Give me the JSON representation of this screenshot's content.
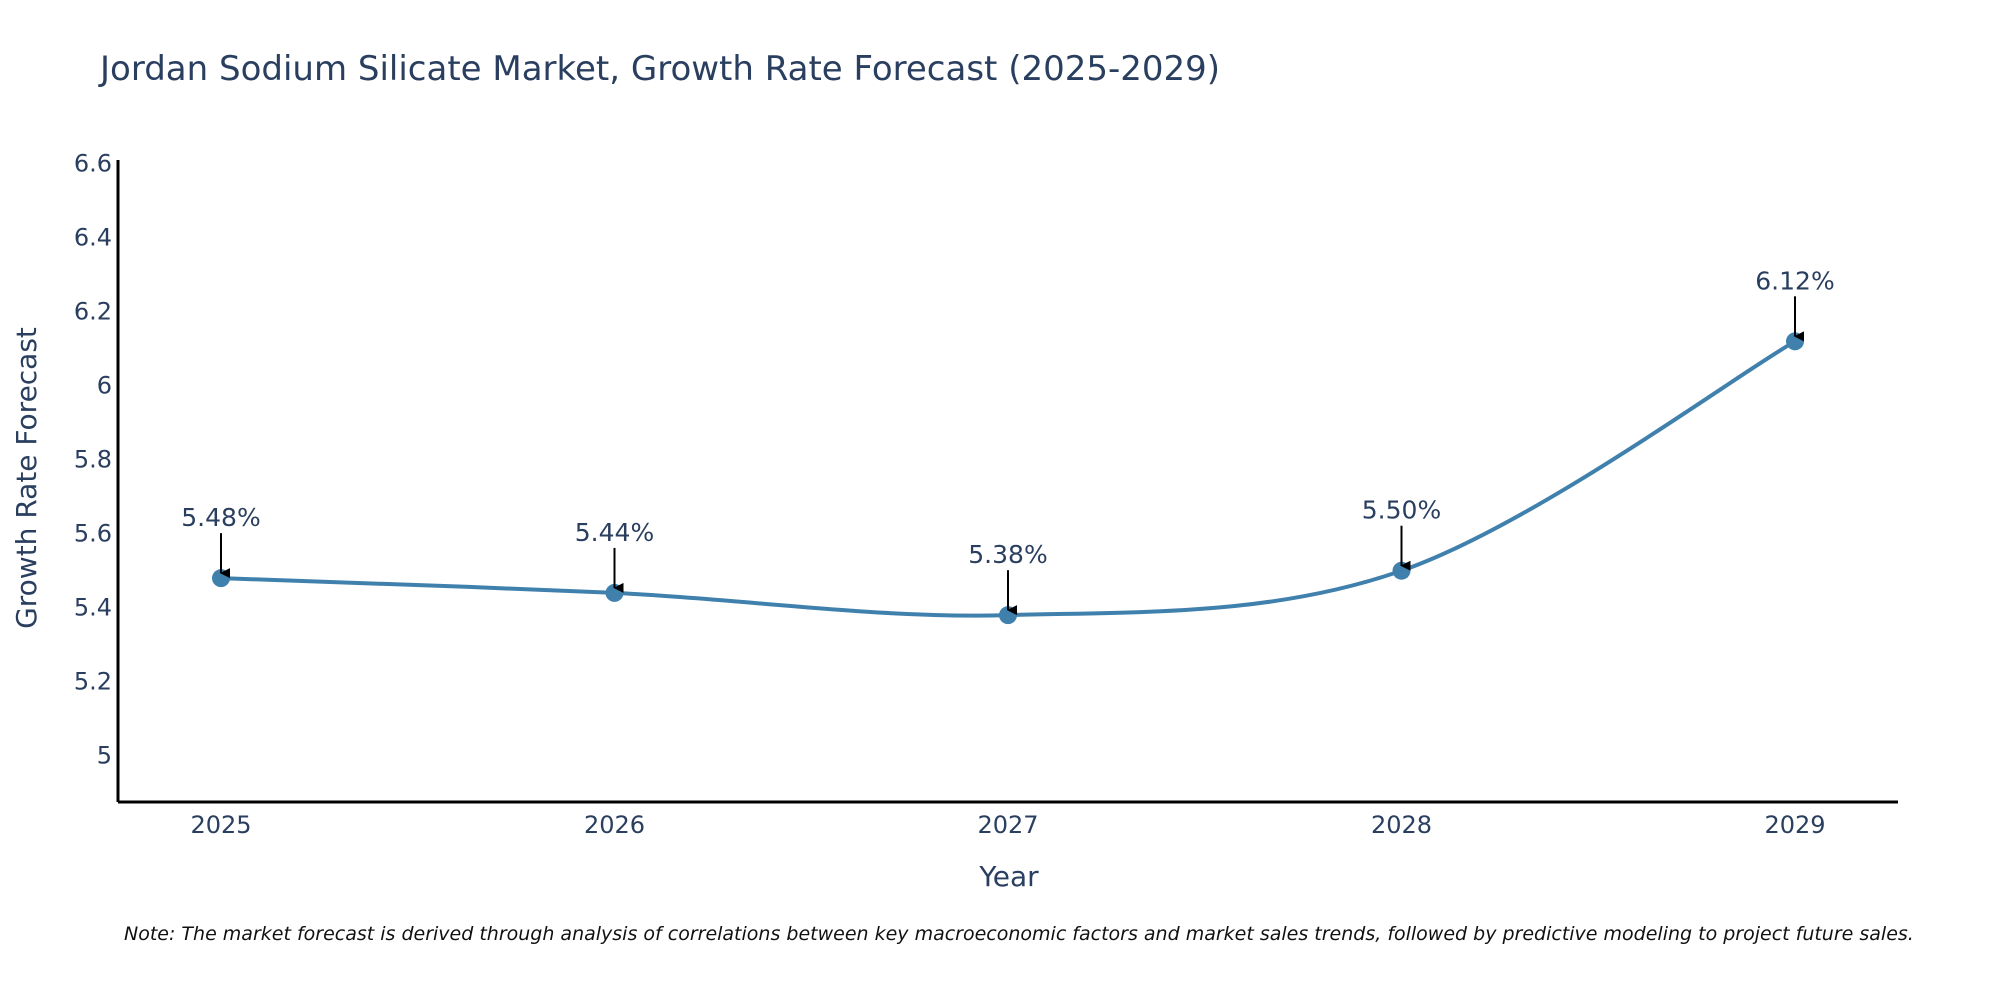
{
  "chart_data": {
    "type": "line",
    "title": "Jordan Sodium Silicate Market, Growth Rate Forecast (2025-2029)",
    "xlabel": "Year",
    "ylabel": "Growth Rate Forecast",
    "categories": [
      "2025",
      "2026",
      "2027",
      "2028",
      "2029"
    ],
    "values": [
      5.48,
      5.44,
      5.38,
      5.5,
      6.12
    ],
    "data_labels": [
      "5.48%",
      "5.44%",
      "5.38%",
      "5.50%",
      "6.12%"
    ],
    "yticks": [
      5,
      5.2,
      5.4,
      5.6,
      5.8,
      6,
      6.2,
      6.4,
      6.6
    ],
    "ytick_labels": [
      "5",
      "5.2",
      "5.4",
      "5.6",
      "5.8",
      "6",
      "6.2",
      "6.4",
      "6.6"
    ],
    "ylim": [
      4.875,
      6.61
    ],
    "line_shape": "spline",
    "grid": false,
    "line_color": "#4080ad",
    "marker_color": "#4080ad",
    "annotation_arrow_color": "#000000",
    "note": "Note: The market forecast is derived through analysis of correlations between key macroeconomic factors and market sales trends, followed by predictive modeling to project future sales."
  }
}
